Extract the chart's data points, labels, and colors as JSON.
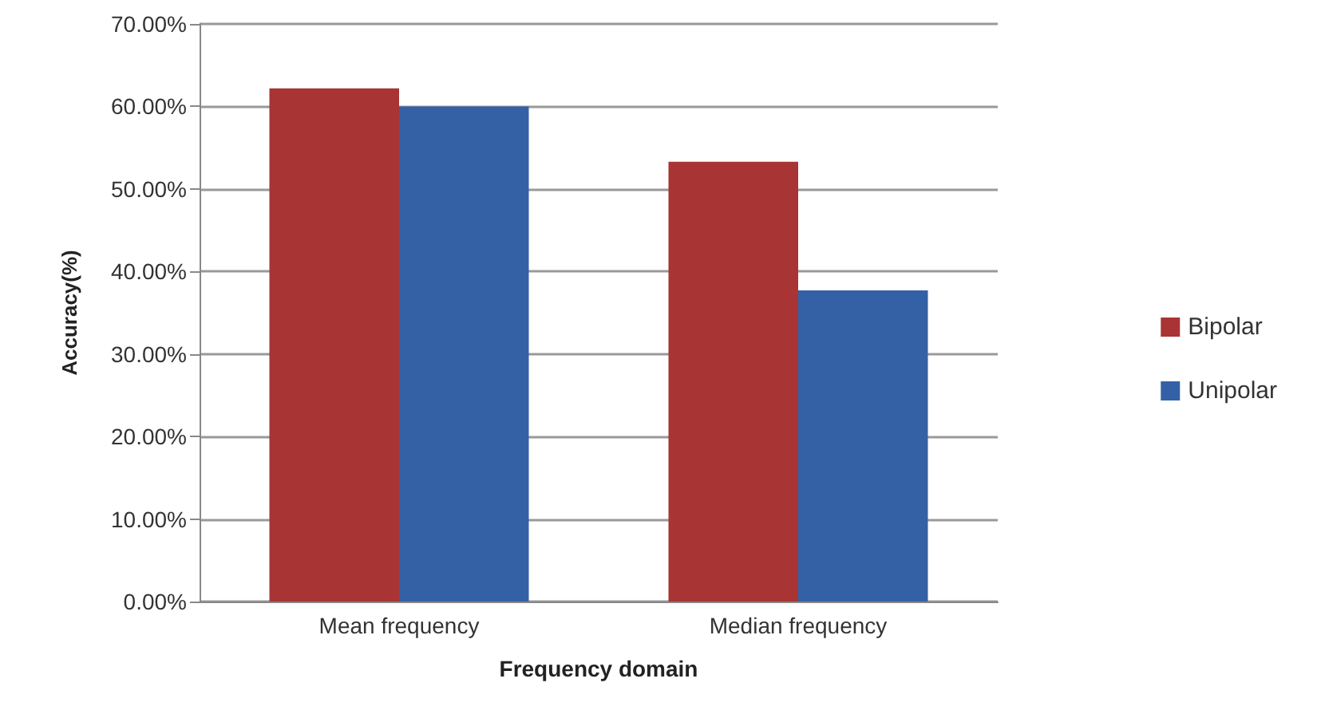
{
  "chart_data": {
    "type": "bar",
    "xlabel": "Frequency domain",
    "ylabel": "Accuracy(%)",
    "categories": [
      "Mean frequency",
      "Median frequency"
    ],
    "series": [
      {
        "name": "Bipolar",
        "color": "#a83434",
        "values": [
          62.2,
          53.3
        ]
      },
      {
        "name": "Unipolar",
        "color": "#3461a6",
        "values": [
          60.0,
          37.7
        ]
      }
    ],
    "ylim": [
      0,
      70
    ],
    "yticks": [
      {
        "value": 0,
        "label": "0.00%"
      },
      {
        "value": 10,
        "label": "10.00%"
      },
      {
        "value": 20,
        "label": "20.00%"
      },
      {
        "value": 30,
        "label": "30.00%"
      },
      {
        "value": 40,
        "label": "40.00%"
      },
      {
        "value": 50,
        "label": "50.00%"
      },
      {
        "value": 60,
        "label": "60.00%"
      },
      {
        "value": 70,
        "label": "70.00%"
      }
    ],
    "grid": "y",
    "legend": "right"
  }
}
